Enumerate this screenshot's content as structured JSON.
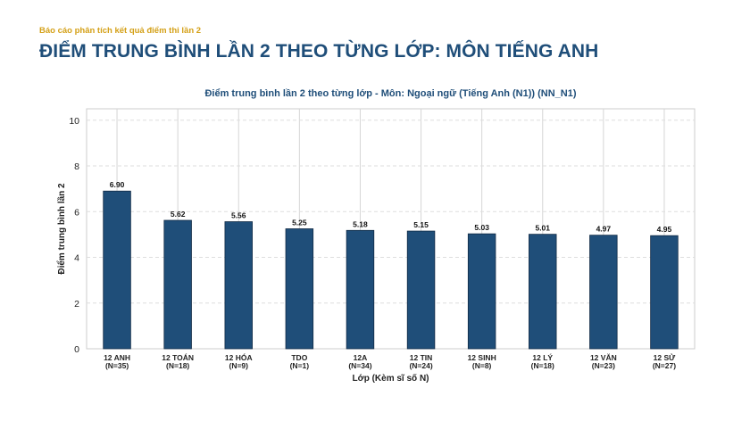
{
  "report": {
    "kicker": "Báo cáo phân tích kết quả điểm thi lần 2",
    "title": "ĐIỂM TRUNG BÌNH LẦN 2 THEO TỪNG LỚP: MÔN TIẾNG ANH"
  },
  "chart_data": {
    "type": "bar",
    "title": "Điểm trung bình lần 2 theo từng lớp - Môn: Ngoại ngữ (Tiếng Anh (N1)) (NN_N1)",
    "xlabel": "Lớp (Kèm sĩ số N)",
    "ylabel": "Điểm trung bình lần 2",
    "ylim": [
      0,
      10.5
    ],
    "yticks": [
      0,
      2,
      4,
      6,
      8,
      10
    ],
    "grid": true,
    "categories": [
      {
        "name": "12 ANH",
        "n": "(N=35)"
      },
      {
        "name": "12 TOÁN",
        "n": "(N=18)"
      },
      {
        "name": "12 HÓA",
        "n": "(N=9)"
      },
      {
        "name": "TDO",
        "n": "(N=1)"
      },
      {
        "name": "12A",
        "n": "(N=34)"
      },
      {
        "name": "12 TIN",
        "n": "(N=24)"
      },
      {
        "name": "12 SINH",
        "n": "(N=8)"
      },
      {
        "name": "12 LÝ",
        "n": "(N=18)"
      },
      {
        "name": "12 VĂN",
        "n": "(N=23)"
      },
      {
        "name": "12 SỬ",
        "n": "(N=27)"
      }
    ],
    "values": [
      6.9,
      5.62,
      5.56,
      5.25,
      5.18,
      5.15,
      5.03,
      5.01,
      4.97,
      4.95
    ],
    "value_labels": [
      "6.90",
      "5.62",
      "5.56",
      "5.25",
      "5.18",
      "5.15",
      "5.03",
      "5.01",
      "4.97",
      "4.95"
    ],
    "bar_color": "#1f4e79"
  }
}
